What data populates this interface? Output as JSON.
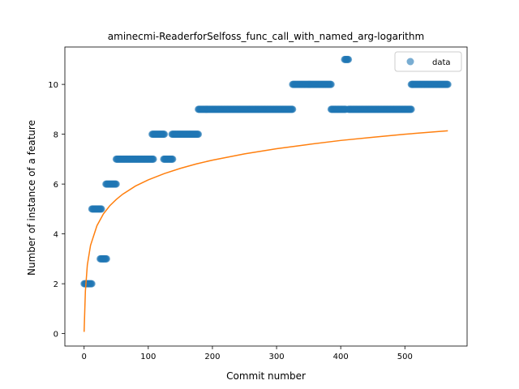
{
  "chart_data": {
    "type": "scatter",
    "title": "aminecmi-ReaderforSelfoss_func_call_with_named_arg-logarithm",
    "xlabel": "Commit number",
    "ylabel": "Number of instance of a feature",
    "xlim": [
      -30,
      597
    ],
    "ylim": [
      -0.5,
      11.5
    ],
    "xticks": [
      0,
      100,
      200,
      300,
      400,
      500
    ],
    "yticks": [
      0,
      2,
      4,
      6,
      8,
      10
    ],
    "grid": false,
    "legend": {
      "placement": "top-right",
      "entries": [
        "data"
      ]
    },
    "colors": {
      "data": "#1f77b4",
      "fit": "#ff7f0e"
    },
    "series": [
      {
        "name": "data",
        "kind": "scatter",
        "segments": [
          {
            "x_start": 0,
            "x_end": 12,
            "y": 2
          },
          {
            "x_start": 12,
            "x_end": 27,
            "y": 5
          },
          {
            "x_start": 25,
            "x_end": 35,
            "y": 3
          },
          {
            "x_start": 34,
            "x_end": 50,
            "y": 6
          },
          {
            "x_start": 50,
            "x_end": 108,
            "y": 7
          },
          {
            "x_start": 106,
            "x_end": 125,
            "y": 8
          },
          {
            "x_start": 124,
            "x_end": 138,
            "y": 7
          },
          {
            "x_start": 137,
            "x_end": 178,
            "y": 8
          },
          {
            "x_start": 178,
            "x_end": 325,
            "y": 9
          },
          {
            "x_start": 325,
            "x_end": 385,
            "y": 10
          },
          {
            "x_start": 385,
            "x_end": 408,
            "y": 9
          },
          {
            "x_start": 406,
            "x_end": 412,
            "y": 11
          },
          {
            "x_start": 412,
            "x_end": 510,
            "y": 9
          },
          {
            "x_start": 510,
            "x_end": 567,
            "y": 10
          }
        ]
      },
      {
        "kind": "line",
        "function": "logarithm",
        "x": [
          0,
          1,
          2,
          5,
          10,
          20,
          30,
          40,
          50,
          60,
          80,
          100,
          125,
          150,
          175,
          200,
          250,
          300,
          350,
          400,
          450,
          500,
          567
        ],
        "y": [
          0.07,
          0.91,
          1.71,
          2.75,
          3.54,
          4.33,
          4.8,
          5.13,
          5.38,
          5.59,
          5.92,
          6.17,
          6.42,
          6.63,
          6.81,
          6.96,
          7.21,
          7.42,
          7.59,
          7.75,
          7.88,
          8.0,
          8.14
        ]
      }
    ]
  }
}
